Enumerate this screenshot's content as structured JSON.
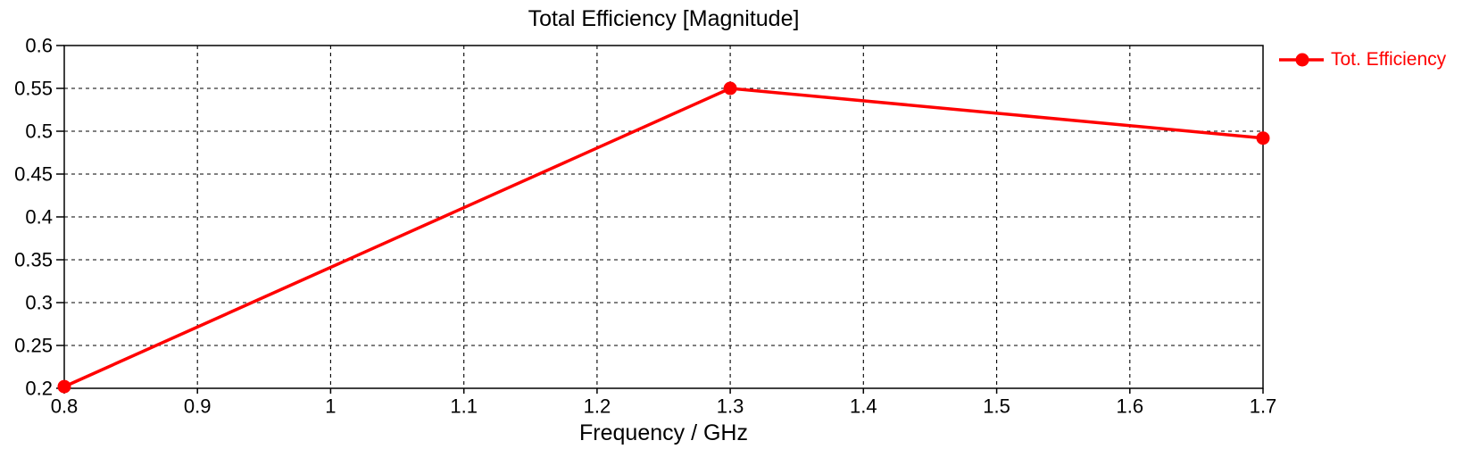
{
  "chart_data": {
    "type": "line",
    "title": "Total Efficiency [Magnitude]",
    "xlabel": "Frequency / GHz",
    "ylabel": "",
    "xlim": [
      0.8,
      1.7
    ],
    "ylim": [
      0.2,
      0.6
    ],
    "grid": true,
    "background_color": "#ffffff",
    "axis_color": "#000000",
    "xticks": {
      "values": [
        0.8,
        0.9,
        1.0,
        1.1,
        1.2,
        1.3,
        1.4,
        1.5,
        1.6,
        1.7
      ],
      "labels": [
        "0.8",
        "0.9",
        "1",
        "1.1",
        "1.2",
        "1.3",
        "1.4",
        "1.5",
        "1.6",
        "1.7"
      ]
    },
    "yticks": {
      "values": [
        0.2,
        0.25,
        0.3,
        0.35,
        0.4,
        0.45,
        0.5,
        0.55,
        0.6
      ],
      "labels": [
        "0.2",
        "0.25",
        "0.3",
        "0.35",
        "0.4",
        "0.45",
        "0.5",
        "0.55",
        "0.6"
      ]
    },
    "series": [
      {
        "name": "Tot. Efficiency",
        "color": "#ff0000",
        "marker": "circle",
        "x": [
          0.8,
          1.3,
          1.7
        ],
        "y": [
          0.202,
          0.55,
          0.492
        ]
      }
    ],
    "legend": {
      "position": "top-right-outside",
      "entries": [
        {
          "label": "Tot. Efficiency",
          "color": "#ff0000",
          "marker": "circle"
        }
      ]
    }
  }
}
